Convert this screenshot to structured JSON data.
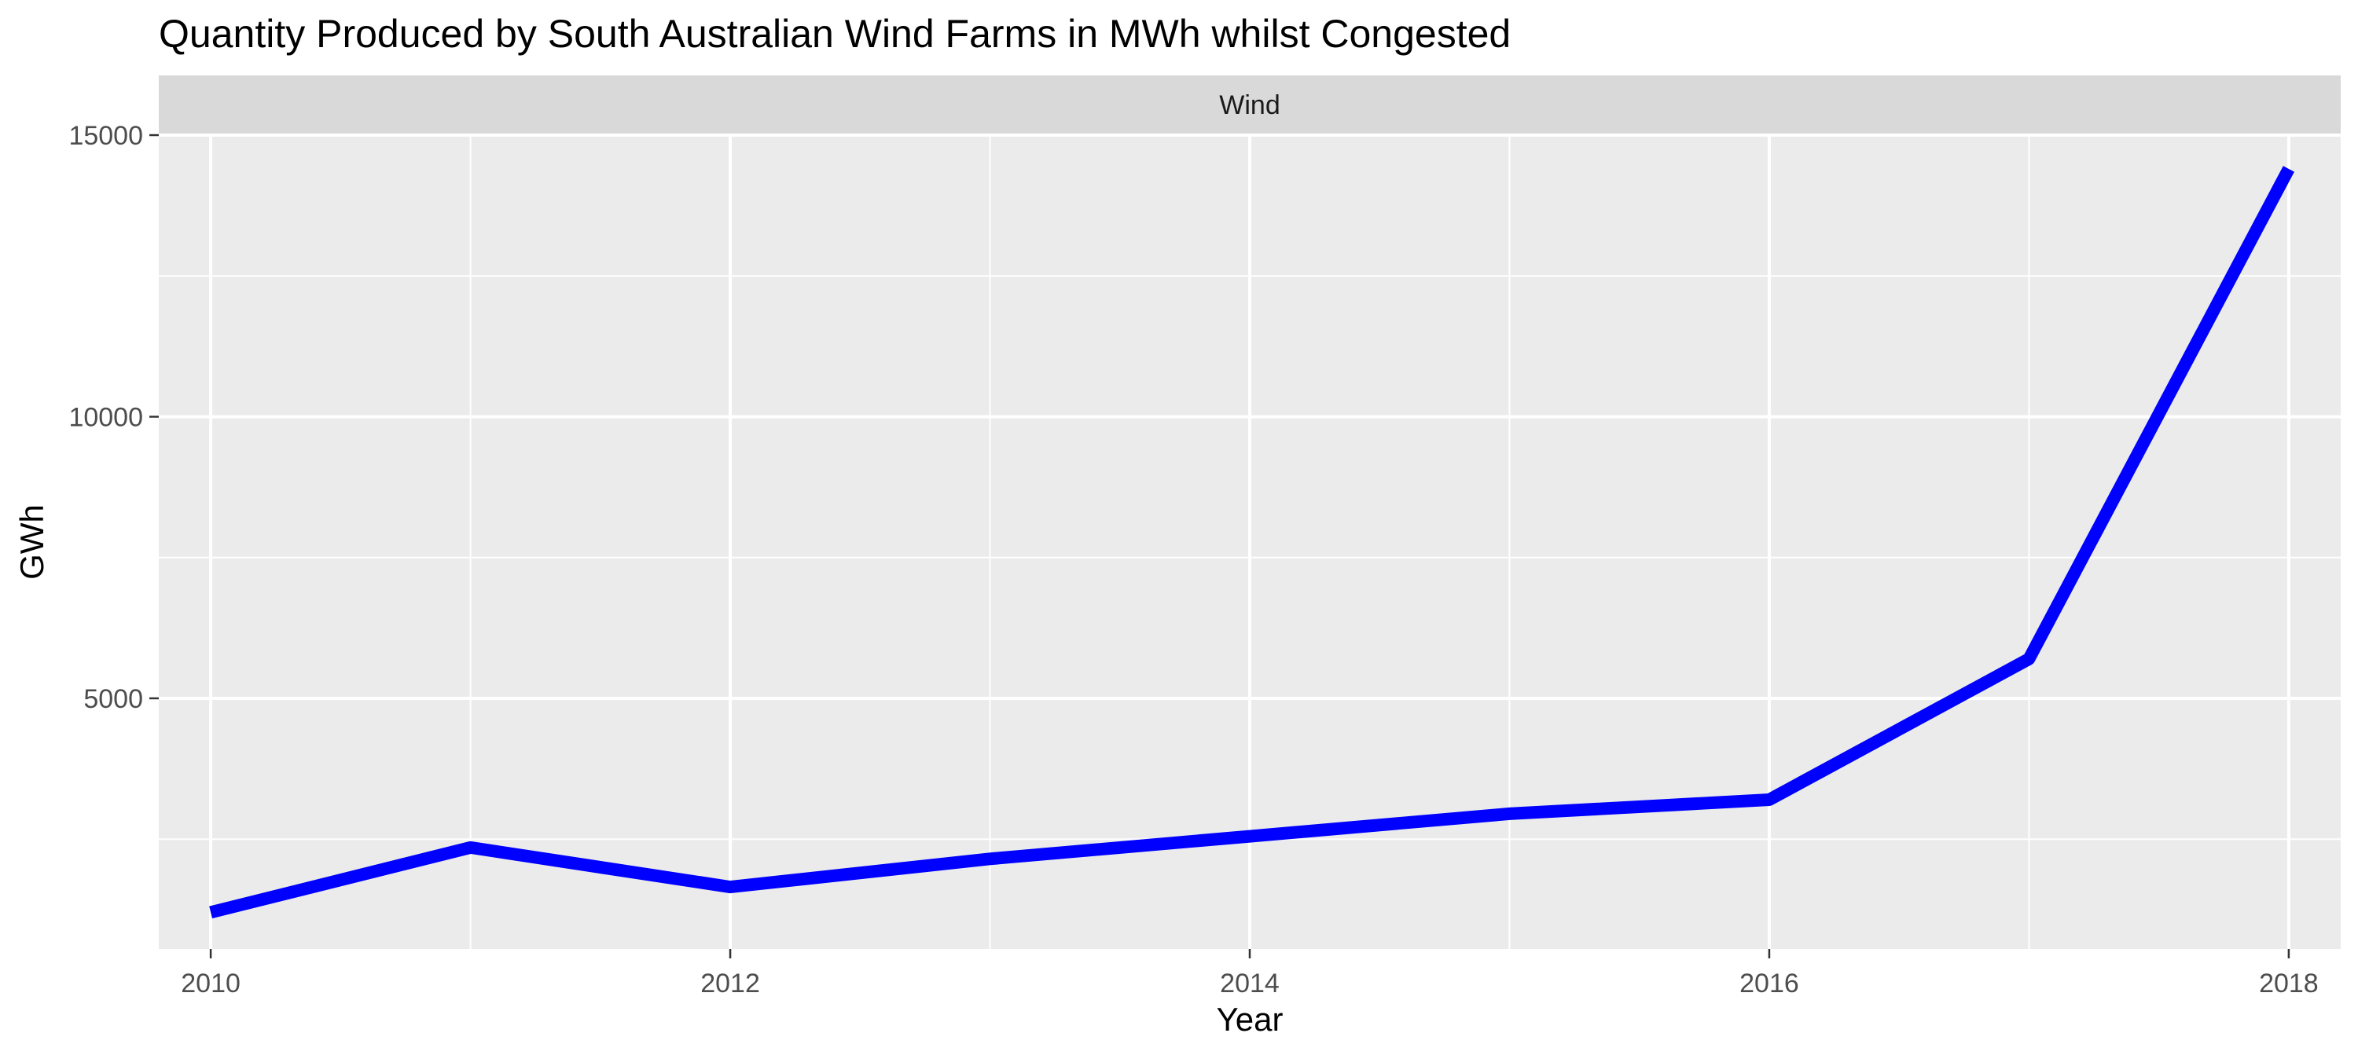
{
  "chart_data": {
    "type": "line",
    "title": "Quantity Produced by South Australian Wind Farms in MWh whilst Congested",
    "facet_label": "Wind",
    "xlabel": "Year",
    "ylabel": "GWh",
    "x": [
      2010,
      2011,
      2012,
      2013,
      2014,
      2015,
      2016,
      2017,
      2018
    ],
    "series": [
      {
        "color": "#0000ff",
        "values": [
          1200,
          2350,
          1650,
          2150,
          2550,
          2950,
          3200,
          5700,
          14400
        ]
      }
    ],
    "xlim": [
      2009.8,
      2018.2
    ],
    "ylim": [
      550,
      15000
    ],
    "x_ticks": [
      2010,
      2012,
      2014,
      2016,
      2018
    ],
    "x_tick_labels": [
      "2010",
      "2012",
      "2014",
      "2016",
      "2018"
    ],
    "y_ticks": [
      5000,
      10000,
      15000
    ],
    "y_tick_labels": [
      "5000",
      "10000",
      "15000"
    ],
    "y_minor_ticks": [
      2500,
      7500,
      12500
    ],
    "x_minor_ticks": [
      2011,
      2013,
      2015,
      2017
    ],
    "grid": true,
    "legend": "none",
    "panel_background": "#ebebeb",
    "strip_background": "#d9d9d9",
    "grid_color": "#ffffff"
  }
}
